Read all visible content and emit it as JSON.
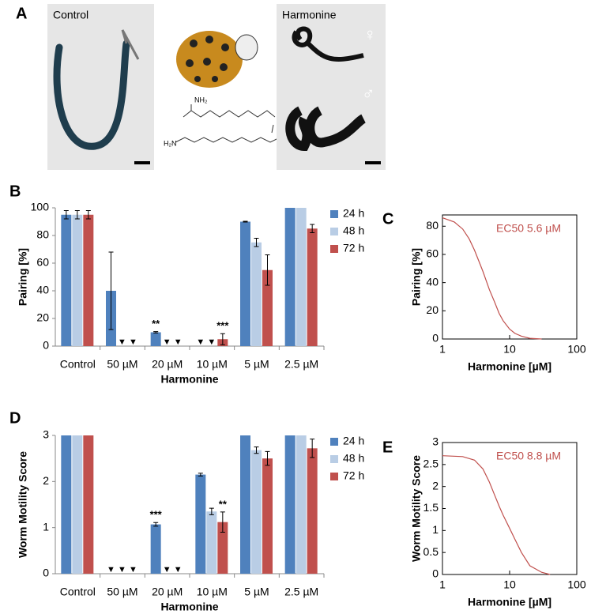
{
  "panel_a": {
    "label": "A",
    "control_label": "Control",
    "treated_label": "Harmonine",
    "female": "♀",
    "male": "♂",
    "amine_1": "NH₂",
    "amine_2": "H₂N"
  },
  "chart_data": [
    {
      "type": "bar",
      "panel_label": "B",
      "ylabel": "Pairing [%]",
      "xlabel": "Harmonine",
      "categories": [
        "Control",
        "50 µM",
        "20 µM",
        "10 µM",
        "5 µM",
        "2.5 µM"
      ],
      "ylim": [
        0,
        100
      ],
      "yticks": [
        0,
        20,
        40,
        60,
        80,
        100
      ],
      "series": [
        {
          "name": "24 h",
          "color": "#4f81bd",
          "values": [
            95,
            40,
            10,
            0,
            90,
            100
          ],
          "errors": [
            3,
            28,
            0.5,
            null,
            0.3,
            null
          ],
          "annotations": [
            null,
            null,
            "**",
            "▼",
            null,
            null
          ]
        },
        {
          "name": "48 h",
          "color": "#b9cde5",
          "values": [
            95,
            0,
            0,
            0,
            75,
            100
          ],
          "errors": [
            3,
            null,
            null,
            null,
            3,
            null
          ],
          "annotations": [
            null,
            "▼",
            "▼",
            "▼",
            null,
            null
          ]
        },
        {
          "name": "72 h",
          "color": "#c0504d",
          "values": [
            95,
            0,
            0,
            5,
            55,
            85
          ],
          "errors": [
            3,
            null,
            null,
            4,
            11,
            3
          ],
          "annotations": [
            null,
            "▼",
            "▼",
            "***",
            null,
            null
          ]
        }
      ]
    },
    {
      "type": "line",
      "panel_label": "C",
      "ylabel": "Pairing [%]",
      "xlabel": "Harmonine [µM]",
      "annotation": "EC50 5.6 µM",
      "color": "#c0504d",
      "log_x": true,
      "xlim": [
        1,
        100
      ],
      "xticks": [
        1,
        10,
        100
      ],
      "ylim": [
        0,
        88
      ],
      "yticks": [
        0,
        20,
        40,
        60,
        80
      ],
      "x": [
        1,
        1.5,
        2,
        2.5,
        3,
        3.5,
        4,
        5,
        6,
        7,
        8,
        10,
        12,
        15,
        20,
        30
      ],
      "values": [
        86,
        83,
        78,
        71,
        63,
        55,
        48,
        35,
        26,
        18,
        13,
        7,
        4,
        2,
        0.5,
        0
      ]
    },
    {
      "type": "bar",
      "panel_label": "D",
      "ylabel": "Worm Motility Score",
      "xlabel": "Harmonine",
      "categories": [
        "Control",
        "50 µM",
        "20 µM",
        "10 µM",
        "5 µM",
        "2.5 µM"
      ],
      "ylim": [
        0,
        3
      ],
      "yticks": [
        0,
        1,
        2,
        3
      ],
      "series": [
        {
          "name": "24 h",
          "color": "#4f81bd",
          "values": [
            3,
            0,
            1.07,
            2.15,
            3,
            3
          ],
          "errors": [
            null,
            null,
            0.04,
            0.03,
            null,
            null
          ],
          "annotations": [
            null,
            "▼",
            "***",
            null,
            null,
            null
          ]
        },
        {
          "name": "48 h",
          "color": "#b9cde5",
          "values": [
            3,
            0,
            0,
            1.35,
            2.68,
            3
          ],
          "errors": [
            null,
            null,
            null,
            0.07,
            0.07,
            null
          ],
          "annotations": [
            null,
            "▼",
            "▼",
            null,
            null,
            null
          ]
        },
        {
          "name": "72 h",
          "color": "#c0504d",
          "values": [
            3,
            0,
            0,
            1.12,
            2.5,
            2.72
          ],
          "errors": [
            null,
            null,
            null,
            0.22,
            0.15,
            0.2
          ],
          "annotations": [
            null,
            "▼",
            "▼",
            "**",
            null,
            null
          ]
        }
      ]
    },
    {
      "type": "line",
      "panel_label": "E",
      "ylabel": "Worm Motility Score",
      "xlabel": "Harmonine [µM]",
      "annotation": "EC50 8.8 µM",
      "color": "#c0504d",
      "log_x": true,
      "xlim": [
        1,
        100
      ],
      "xticks": [
        1,
        10,
        100
      ],
      "ylim": [
        0,
        3
      ],
      "yticks": [
        0,
        0.5,
        1,
        1.5,
        2,
        2.5,
        3
      ],
      "x": [
        1,
        2,
        3,
        4,
        5,
        6,
        7,
        8,
        10,
        12,
        15,
        20,
        30,
        40
      ],
      "values": [
        2.7,
        2.68,
        2.6,
        2.4,
        2.1,
        1.8,
        1.55,
        1.35,
        1.05,
        0.8,
        0.5,
        0.2,
        0.05,
        0
      ]
    }
  ]
}
